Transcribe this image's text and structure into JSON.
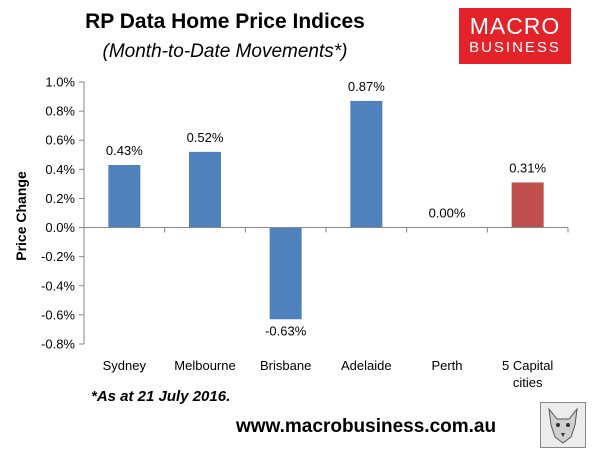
{
  "header": {
    "title": "RP Data Home Price Indices",
    "subtitle": "(Month-to-Date Movements*)"
  },
  "logo": {
    "line1": "MACRO",
    "line2": "BUSINESS",
    "color": "#e32229"
  },
  "chart_data": {
    "type": "bar",
    "categories": [
      [
        "Sydney"
      ],
      [
        "Melbourne"
      ],
      [
        "Brisbane"
      ],
      [
        "Adelaide"
      ],
      [
        "Perth"
      ],
      [
        "5 Capital",
        "cities"
      ]
    ],
    "values": [
      0.43,
      0.52,
      -0.63,
      0.87,
      0.0,
      0.31
    ],
    "data_labels": [
      "0.43%",
      "0.52%",
      "-0.63%",
      "0.87%",
      "0.00%",
      "0.31%"
    ],
    "colors": [
      "#4f81bd",
      "#4f81bd",
      "#4f81bd",
      "#4f81bd",
      "#4f81bd",
      "#c0504d"
    ],
    "ylabel": "Price Change",
    "ylim": [
      -0.8,
      1.0
    ],
    "yticks": [
      1.0,
      0.8,
      0.6,
      0.4,
      0.2,
      0.0,
      -0.2,
      -0.4,
      -0.6,
      -0.8
    ],
    "ytick_labels": [
      "1.0%",
      "0.8%",
      "0.6%",
      "0.4%",
      "0.2%",
      "0.0%",
      "-0.2%",
      "-0.4%",
      "-0.6%",
      "-0.8%"
    ],
    "grid": false
  },
  "footer": {
    "note": "*As at 21 July 2016.",
    "website": "www.macrobusiness.com.au"
  }
}
